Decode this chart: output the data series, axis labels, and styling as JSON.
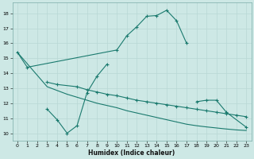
{
  "bg_color": "#cde8e5",
  "grid_color": "#b8d8d5",
  "line_color": "#1a7a6e",
  "xlabel": "Humidex (Indice chaleur)",
  "ylim": [
    9.5,
    18.7
  ],
  "xlim": [
    -0.5,
    23.5
  ],
  "yticks": [
    10,
    11,
    12,
    13,
    14,
    15,
    16,
    17,
    18
  ],
  "xticks": [
    0,
    1,
    2,
    3,
    4,
    5,
    6,
    7,
    8,
    9,
    10,
    11,
    12,
    13,
    14,
    15,
    16,
    17,
    18,
    19,
    20,
    21,
    22,
    23
  ],
  "line1_x": [
    0,
    1,
    10,
    11,
    12,
    13,
    14,
    15,
    16,
    17
  ],
  "line1_y": [
    15.4,
    14.4,
    15.55,
    16.5,
    17.1,
    17.8,
    17.85,
    18.2,
    17.5,
    16.0
  ],
  "line2_x": [
    3,
    4,
    6,
    7,
    8,
    9,
    10,
    11,
    12,
    13,
    14,
    15,
    16,
    17,
    18,
    19,
    20,
    21,
    22,
    23
  ],
  "line2_y": [
    13.4,
    13.25,
    13.1,
    12.9,
    12.75,
    12.6,
    12.5,
    12.35,
    12.2,
    12.1,
    12.0,
    11.9,
    11.8,
    11.7,
    11.6,
    11.5,
    11.4,
    11.3,
    11.2,
    11.1
  ],
  "line3_x": [
    3,
    4,
    5,
    6,
    7,
    8,
    9
  ],
  "line3_y": [
    11.6,
    10.9,
    10.0,
    10.5,
    12.7,
    13.8,
    14.6
  ],
  "line4_x": [
    0,
    3,
    4,
    5,
    6,
    7,
    8,
    9,
    10,
    11,
    12,
    13,
    14,
    15,
    16,
    17,
    18,
    19,
    20,
    21,
    22,
    23
  ],
  "line4_y": [
    15.4,
    13.1,
    12.85,
    12.6,
    12.4,
    12.2,
    12.0,
    11.85,
    11.7,
    11.5,
    11.35,
    11.2,
    11.05,
    10.9,
    10.75,
    10.6,
    10.5,
    10.42,
    10.35,
    10.28,
    10.22,
    10.18
  ],
  "line5_x": [
    18,
    19,
    20,
    21,
    23
  ],
  "line5_y": [
    12.1,
    12.2,
    12.2,
    11.4,
    10.4
  ]
}
